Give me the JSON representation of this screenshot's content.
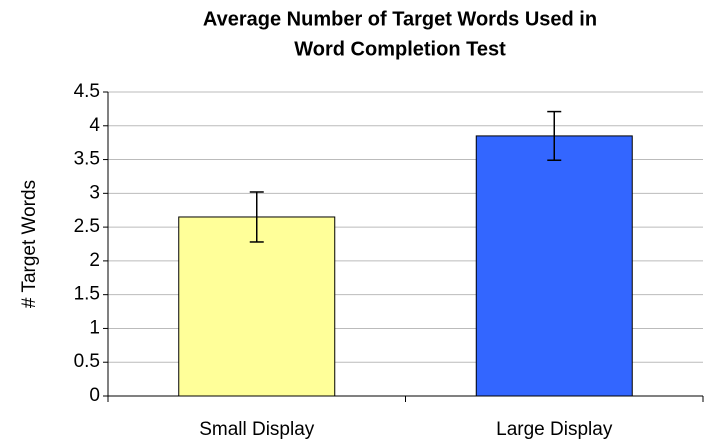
{
  "chart_data": {
    "type": "bar",
    "title": [
      "Average Number of Target Words Used in",
      "Word Completion Test"
    ],
    "ylabel": "# Target Words",
    "categories": [
      "Small Display",
      "Large Display"
    ],
    "values": [
      2.65,
      3.85
    ],
    "errors": [
      0.37,
      0.36
    ],
    "colors": [
      "#ffff99",
      "#3366ff"
    ],
    "ylim": [
      0,
      4.5
    ],
    "yticks": [
      0,
      0.5,
      1,
      1.5,
      2,
      2.5,
      3,
      3.5,
      4,
      4.5
    ],
    "grid": true
  }
}
